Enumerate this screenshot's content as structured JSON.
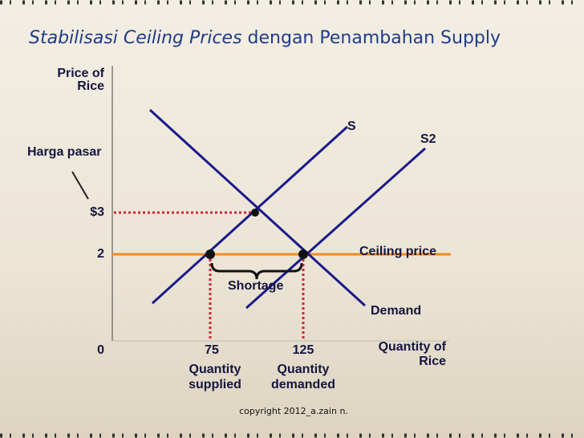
{
  "title": {
    "emphasis": "Stabilisasi Ceiling Prices",
    "rest": "dengan Penambahan Supply"
  },
  "y_axis": {
    "label_line1": "Price of",
    "label_line2": "Rice",
    "market_price_label": "Harga pasar",
    "ticks": [
      "$3",
      "2",
      "0"
    ]
  },
  "x_axis": {
    "label_line1": "Quantity of",
    "label_line2": "Rice",
    "ticks": [
      "75",
      "125"
    ]
  },
  "x_tick_notes": [
    {
      "line1": "Quantity",
      "line2": "supplied"
    },
    {
      "line1": "Quantity",
      "line2": "demanded"
    }
  ],
  "curves": {
    "supply": "S",
    "supply2": "S2",
    "demand": "Demand",
    "ceiling": "Ceiling price"
  },
  "shortage": "Shortage",
  "footer": "copyright 2012_a.zain n."
}
